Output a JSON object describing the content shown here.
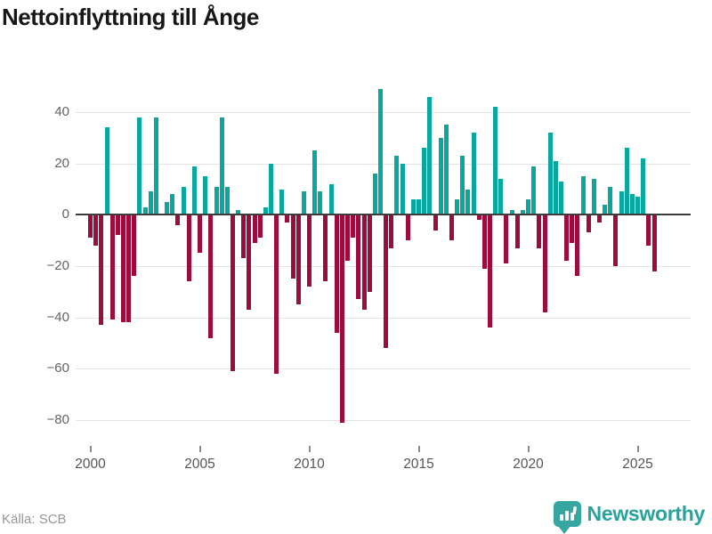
{
  "title": "Nettoinflyttning till Ånge",
  "source_label": "Källa: SCB",
  "branding": {
    "name": "Newsworthy",
    "icon": "bar-chart-pin-icon"
  },
  "colors": {
    "positive_bar": "#0aa79e",
    "negative_bar": "#9c0d3e",
    "zero_line": "#3d3d3d",
    "gridline": "#e4e4e4",
    "title_text": "#171717",
    "axis_text": "#5f5f5f",
    "source_text": "#979797",
    "brand_teal": "#2aa39c"
  },
  "chart_data": {
    "type": "bar",
    "title": "Nettoinflyttning till Ånge",
    "frequency": "quarterly",
    "start_period": "2000-Q1",
    "end_period": "2025-Q4",
    "x_tick_labels": [
      "2000",
      "2005",
      "2010",
      "2015",
      "2020",
      "2025"
    ],
    "y_ticks": [
      40,
      20,
      0,
      -20,
      -40,
      -60,
      -80
    ],
    "ylim": [
      -86,
      51
    ],
    "grid": "horizontal",
    "legend": "none",
    "series_name": "Nettoinflyttning",
    "values": [
      -9,
      -12,
      -43,
      34,
      -41,
      -8,
      -42,
      -42,
      -24,
      38,
      3,
      9,
      38,
      0,
      5,
      8,
      -4,
      11,
      -26,
      19,
      -15,
      15,
      -48,
      11,
      38,
      11,
      -61,
      2,
      -17,
      -37,
      -11,
      -9,
      3,
      20,
      -62,
      10,
      -3,
      -25,
      -35,
      9,
      -28,
      25,
      9,
      -26,
      12,
      -46,
      -81,
      -18,
      -9,
      -33,
      -37,
      -30,
      16,
      49,
      -52,
      -13,
      23,
      20,
      -10,
      6,
      6,
      26,
      46,
      -6,
      30,
      35,
      -10,
      6,
      23,
      10,
      32,
      -2,
      -21,
      -44,
      42,
      14,
      -19,
      2,
      -13,
      2,
      6,
      19,
      -13,
      -38,
      32,
      21,
      13,
      -18,
      -11,
      -24,
      15,
      -7,
      14,
      -3,
      4,
      11,
      -20,
      9,
      26,
      8,
      7,
      22,
      -12,
      -22
    ]
  }
}
